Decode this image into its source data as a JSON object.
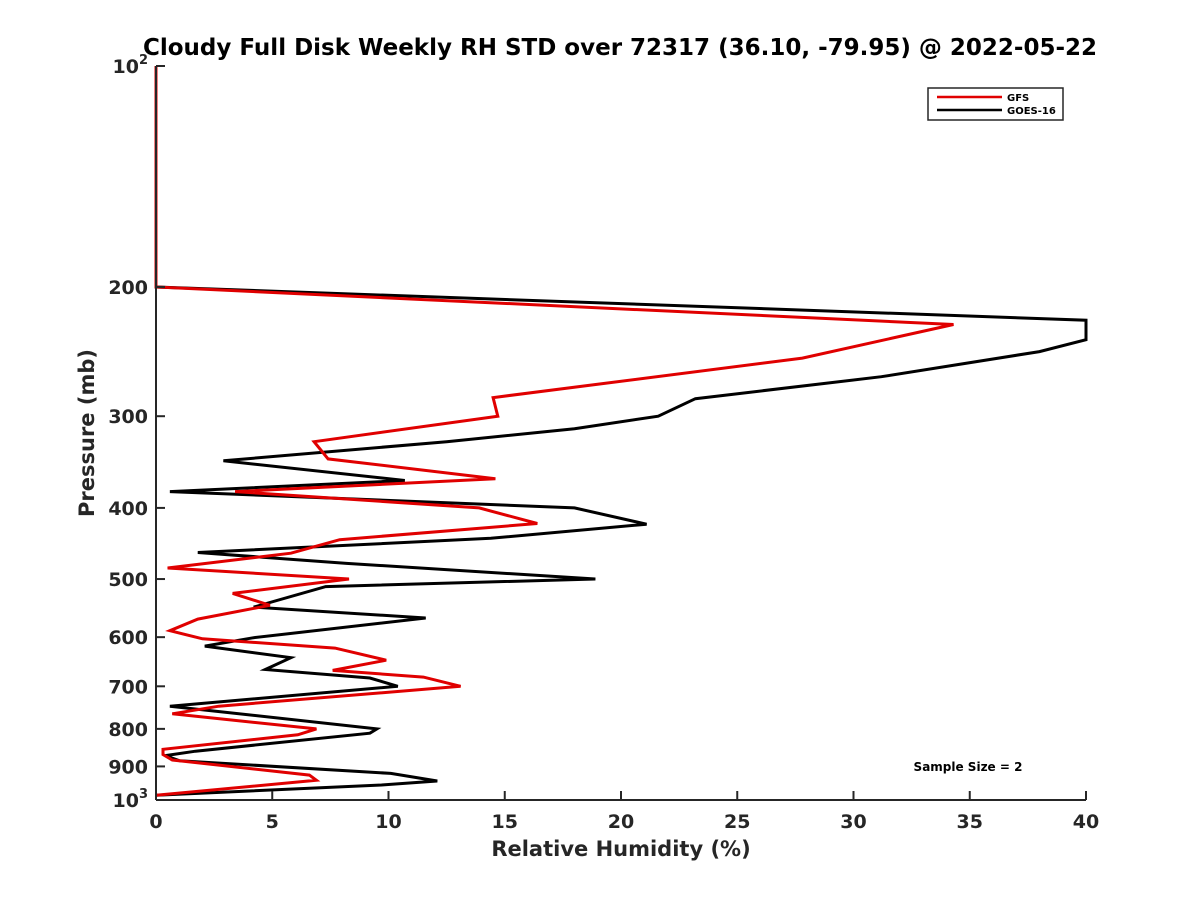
{
  "chart_data": {
    "type": "line",
    "title": "Cloudy Full Disk Weekly RH STD over 72317 (36.10, -79.95) @ 2022-05-22",
    "xlabel": "Relative Humidity (%)",
    "ylabel": "Pressure (mb)",
    "xlim": [
      0,
      40
    ],
    "ylim": [
      100,
      1000
    ],
    "y_scale": "log",
    "y_reversed": true,
    "grid": false,
    "legend_position": "top-right",
    "x_ticks": [
      0,
      5,
      10,
      15,
      20,
      25,
      30,
      35,
      40
    ],
    "x_tick_labels": [
      "0",
      "5",
      "10",
      "15",
      "20",
      "25",
      "30",
      "35",
      "40"
    ],
    "y_ticks": [
      100,
      200,
      300,
      400,
      500,
      600,
      700,
      800,
      900,
      1000
    ],
    "y_tick_labels": [
      {
        "base": "10",
        "exp": "2"
      },
      {
        "base": "200",
        "exp": ""
      },
      {
        "base": "300",
        "exp": ""
      },
      {
        "base": "400",
        "exp": ""
      },
      {
        "base": "500",
        "exp": ""
      },
      {
        "base": "600",
        "exp": ""
      },
      {
        "base": "700",
        "exp": ""
      },
      {
        "base": "800",
        "exp": ""
      },
      {
        "base": "900",
        "exp": ""
      },
      {
        "base": "10",
        "exp": "3"
      }
    ],
    "annotation": "Sample Size = 2",
    "series": [
      {
        "name": "GFS",
        "color": "#e00000",
        "points": [
          {
            "x": 0,
            "y": 100
          },
          {
            "x": 0,
            "y": 200
          },
          {
            "x": 34.3,
            "y": 225
          },
          {
            "x": 27.8,
            "y": 250
          },
          {
            "x": 14.5,
            "y": 283
          },
          {
            "x": 14.7,
            "y": 300
          },
          {
            "x": 6.8,
            "y": 325
          },
          {
            "x": 7.4,
            "y": 343
          },
          {
            "x": 14.6,
            "y": 365
          },
          {
            "x": 3.4,
            "y": 380
          },
          {
            "x": 13.9,
            "y": 400
          },
          {
            "x": 16.4,
            "y": 420
          },
          {
            "x": 7.9,
            "y": 442
          },
          {
            "x": 5.8,
            "y": 461
          },
          {
            "x": 0.5,
            "y": 483
          },
          {
            "x": 8.3,
            "y": 500
          },
          {
            "x": 3.3,
            "y": 523
          },
          {
            "x": 4.9,
            "y": 543
          },
          {
            "x": 1.8,
            "y": 567
          },
          {
            "x": 0.6,
            "y": 588
          },
          {
            "x": 2.0,
            "y": 603
          },
          {
            "x": 7.7,
            "y": 621
          },
          {
            "x": 9.9,
            "y": 645
          },
          {
            "x": 7.6,
            "y": 666
          },
          {
            "x": 11.5,
            "y": 680
          },
          {
            "x": 13.1,
            "y": 700
          },
          {
            "x": 2.7,
            "y": 745
          },
          {
            "x": 0.7,
            "y": 763
          },
          {
            "x": 6.9,
            "y": 800
          },
          {
            "x": 6.1,
            "y": 815
          },
          {
            "x": 0.3,
            "y": 853
          },
          {
            "x": 0.3,
            "y": 867
          },
          {
            "x": 0.7,
            "y": 882
          },
          {
            "x": 6.6,
            "y": 925
          },
          {
            "x": 6.9,
            "y": 940
          },
          {
            "x": 0,
            "y": 985
          }
        ]
      },
      {
        "name": "GOES-16",
        "color": "#000000",
        "points": [
          {
            "x": 0,
            "y": 100
          },
          {
            "x": 0,
            "y": 200
          },
          {
            "x": 40.0,
            "y": 222
          },
          {
            "x": 40.0,
            "y": 236
          },
          {
            "x": 38.0,
            "y": 245
          },
          {
            "x": 31.2,
            "y": 265
          },
          {
            "x": 23.2,
            "y": 284
          },
          {
            "x": 21.6,
            "y": 300
          },
          {
            "x": 18.0,
            "y": 312
          },
          {
            "x": 12.5,
            "y": 325
          },
          {
            "x": 2.9,
            "y": 345
          },
          {
            "x": 10.7,
            "y": 367
          },
          {
            "x": 0.6,
            "y": 380
          },
          {
            "x": 18.0,
            "y": 400
          },
          {
            "x": 21.1,
            "y": 421
          },
          {
            "x": 14.4,
            "y": 440
          },
          {
            "x": 1.8,
            "y": 460
          },
          {
            "x": 8.2,
            "y": 476
          },
          {
            "x": 18.9,
            "y": 500
          },
          {
            "x": 7.3,
            "y": 512
          },
          {
            "x": 4.2,
            "y": 546
          },
          {
            "x": 11.6,
            "y": 565
          },
          {
            "x": 4.2,
            "y": 601
          },
          {
            "x": 2.1,
            "y": 617
          },
          {
            "x": 5.8,
            "y": 640
          },
          {
            "x": 4.7,
            "y": 664
          },
          {
            "x": 9.2,
            "y": 682
          },
          {
            "x": 10.4,
            "y": 700
          },
          {
            "x": 0.6,
            "y": 745
          },
          {
            "x": 9.5,
            "y": 800
          },
          {
            "x": 9.2,
            "y": 811
          },
          {
            "x": 1.7,
            "y": 858
          },
          {
            "x": 0.4,
            "y": 870
          },
          {
            "x": 1.0,
            "y": 884
          },
          {
            "x": 10.1,
            "y": 920
          },
          {
            "x": 12.1,
            "y": 942
          },
          {
            "x": 9.7,
            "y": 954
          },
          {
            "x": 0,
            "y": 985
          }
        ]
      }
    ]
  }
}
